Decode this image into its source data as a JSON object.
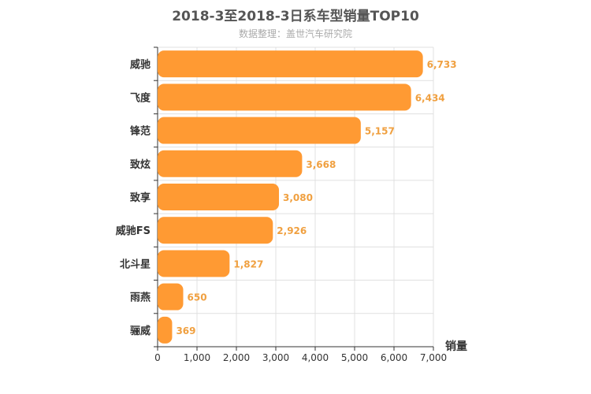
{
  "chart_data": {
    "type": "bar",
    "orientation": "horizontal",
    "title": "2018-3至2018-3日系车型销量TOP10",
    "subtitle": "数据整理：盖世汽车研究院",
    "xlabel": "销量",
    "ylabel": "",
    "categories": [
      "威驰",
      "飞度",
      "锋范",
      "致炫",
      "致享",
      "威驰FS",
      "北斗星",
      "雨燕",
      "骊威"
    ],
    "values": [
      6733,
      6434,
      5157,
      3668,
      3080,
      2926,
      1827,
      650,
      369
    ],
    "value_labels": [
      "6,733",
      "6,434",
      "5,157",
      "3,668",
      "3,080",
      "2,926",
      "1,827",
      "650",
      "369"
    ],
    "xlim": [
      0,
      7000
    ],
    "xticks": [
      0,
      1000,
      2000,
      3000,
      4000,
      5000,
      6000,
      7000
    ],
    "xtick_labels": [
      "0",
      "1,000",
      "2,000",
      "3,000",
      "4,000",
      "5,000",
      "6,000",
      "7,000"
    ],
    "grid": true,
    "bar_color": "#ff9a33",
    "label_color": "#f0a040"
  }
}
